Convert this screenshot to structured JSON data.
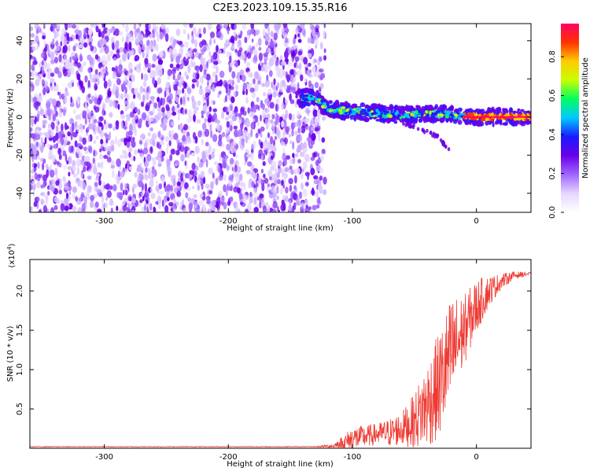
{
  "title": "C2E3.2023.109.15.35.R16",
  "colors": {
    "snr_line": "#ee3a32",
    "spectrum_cold": "#6a00e8",
    "colormap": [
      "#ffffff",
      "#e6d6ff",
      "#a066ff",
      "#6a00e8",
      "#1a1aff",
      "#00c8ff",
      "#00ff60",
      "#c8ff00",
      "#ffcc00",
      "#ff3300",
      "#ff0066"
    ]
  },
  "chart_data": [
    {
      "type": "heatmap",
      "name": "spectrogram",
      "xlabel": "Height of straight line (km)",
      "ylabel": "Frequency (Hz)",
      "xlim": [
        -360,
        44
      ],
      "ylim": [
        -50,
        49
      ],
      "xticks": [
        -300,
        -200,
        -100,
        0
      ],
      "xtick_labels": [
        "-300",
        "-200",
        "-100",
        "0"
      ],
      "yticks": [
        40,
        20,
        0,
        -20,
        -40
      ],
      "ytick_labels": [
        "40",
        "20",
        "0",
        "-20",
        "-40"
      ],
      "noise_region_x": [
        -360,
        -122
      ],
      "ridge": [
        {
          "x": -145,
          "f": 10
        },
        {
          "x": -130,
          "f": 10
        },
        {
          "x": -120,
          "f": 4
        },
        {
          "x": -100,
          "f": 3
        },
        {
          "x": -80,
          "f": 2
        },
        {
          "x": -60,
          "f": 1
        },
        {
          "x": -40,
          "f": 2
        },
        {
          "x": -20,
          "f": 1
        },
        {
          "x": 0,
          "f": 0
        },
        {
          "x": 44,
          "f": 0
        }
      ],
      "branch": [
        {
          "x": -60,
          "f": -3
        },
        {
          "x": -45,
          "f": -6
        },
        {
          "x": -30,
          "f": -11
        },
        {
          "x": -22,
          "f": -17
        }
      ],
      "colorbar": {
        "label": "Normalized spectral amplitude",
        "range": [
          0,
          0.97
        ],
        "ticks": [
          0.0,
          0.2,
          0.4,
          0.6,
          0.8
        ],
        "tick_labels": [
          "0.0",
          "0.2",
          "0.4",
          "0.6",
          "0.8"
        ]
      },
      "grid": false
    },
    {
      "type": "line",
      "name": "snr",
      "xlabel": "Height of straight line (km)",
      "ylabel": "SNR (10 * v/v)",
      "y_multiplier": "(x10",
      "y_multiplier_exp": "4",
      "y_multiplier_close": ")",
      "xlim": [
        -360,
        44
      ],
      "ylim": [
        0,
        2.4
      ],
      "xticks": [
        -300,
        -200,
        -100,
        0
      ],
      "xtick_labels": [
        "-300",
        "-200",
        "-100",
        "0"
      ],
      "yticks": [
        0.5,
        1.0,
        1.5,
        2.0
      ],
      "ytick_labels": [
        "0.5",
        "1.0",
        "1.5",
        "2.0"
      ],
      "series": [
        {
          "x": [
            -360,
            -300,
            -200,
            -130,
            -115,
            -105,
            -100,
            -90,
            -80,
            -70,
            -60,
            -50,
            -40,
            -30,
            -20,
            -10,
            0,
            10,
            20,
            30,
            44
          ],
          "y": [
            0.02,
            0.02,
            0.02,
            0.02,
            0.03,
            0.08,
            0.12,
            0.15,
            0.18,
            0.2,
            0.25,
            0.35,
            0.55,
            0.8,
            1.2,
            1.5,
            1.8,
            2.0,
            2.12,
            2.2,
            2.22
          ],
          "noise": [
            0.004,
            0.004,
            0.004,
            0.004,
            0.03,
            0.12,
            0.16,
            0.14,
            0.14,
            0.18,
            0.22,
            0.35,
            0.55,
            0.7,
            0.75,
            0.45,
            0.35,
            0.2,
            0.1,
            0.05,
            0.02
          ]
        }
      ],
      "grid": false
    }
  ]
}
